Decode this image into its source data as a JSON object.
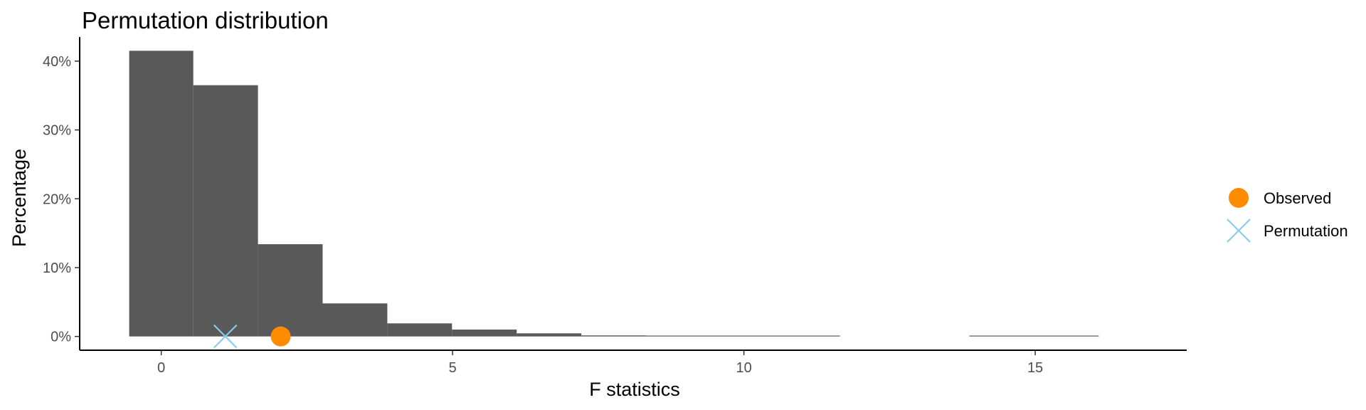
{
  "chart_data": {
    "type": "bar",
    "title": "Permutation distribution",
    "xlabel": "F statistics",
    "ylabel": "Percentage",
    "xlim": [
      -1.4,
      17.6
    ],
    "ylim": [
      -2.0,
      43.5
    ],
    "x_ticks": [
      0,
      5,
      10,
      15
    ],
    "y_ticks": [
      0,
      10,
      20,
      30,
      40
    ],
    "y_tick_labels": [
      "0%",
      "10%",
      "20%",
      "30%",
      "40%"
    ],
    "grid": false,
    "bar_color": "#595959",
    "bins": [
      {
        "x0": -0.55,
        "x1": 0.55,
        "value": 41.5
      },
      {
        "x0": 0.55,
        "x1": 1.66,
        "value": 36.5
      },
      {
        "x0": 1.66,
        "x1": 2.77,
        "value": 13.4
      },
      {
        "x0": 2.77,
        "x1": 3.88,
        "value": 4.8
      },
      {
        "x0": 3.88,
        "x1": 4.99,
        "value": 1.9
      },
      {
        "x0": 4.99,
        "x1": 6.1,
        "value": 1.0
      },
      {
        "x0": 6.1,
        "x1": 7.21,
        "value": 0.45
      },
      {
        "x0": 7.21,
        "x1": 8.32,
        "value": 0.15
      },
      {
        "x0": 8.32,
        "x1": 11.65,
        "value": 0.05
      },
      {
        "x0": 13.87,
        "x1": 16.09,
        "value": 0.05
      }
    ],
    "legend": {
      "position": "right",
      "items": [
        {
          "label": "Observed",
          "shape": "circle",
          "color": "#FF8C00"
        },
        {
          "label": "Permutation",
          "shape": "x",
          "color": "#87CEEB"
        }
      ]
    },
    "markers": [
      {
        "series": "Observed",
        "x": 2.05,
        "y": 0,
        "shape": "circle",
        "color": "#FF8C00"
      },
      {
        "series": "Permutation",
        "x": 1.1,
        "y": 0,
        "shape": "x",
        "color": "#87CEEB"
      }
    ]
  }
}
